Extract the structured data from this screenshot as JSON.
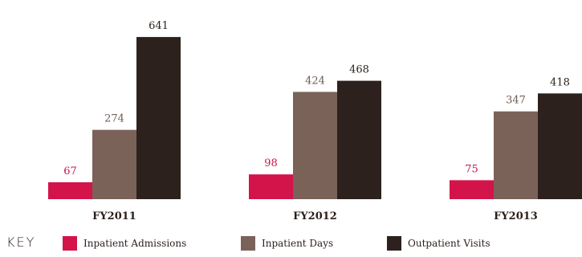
{
  "chart_data": {
    "type": "bar",
    "categories": [
      "FY2011",
      "FY2012",
      "FY2013"
    ],
    "series": [
      {
        "name": "Inpatient Admissions",
        "values": [
          67,
          98,
          75
        ],
        "color": "#d2144a",
        "label_color": "#c4164b"
      },
      {
        "name": "Inpatient Days",
        "values": [
          274,
          424,
          347
        ],
        "color": "#7a6258",
        "label_color": "#6d5a52"
      },
      {
        "name": "Outpatient Visits",
        "values": [
          641,
          468,
          418
        ],
        "color": "#2c211c",
        "label_color": "#2c211c"
      }
    ],
    "title": "",
    "xlabel": "",
    "ylabel": "",
    "legend_position": "bottom",
    "grid": false
  },
  "legend": {
    "key_label": "KEY"
  }
}
